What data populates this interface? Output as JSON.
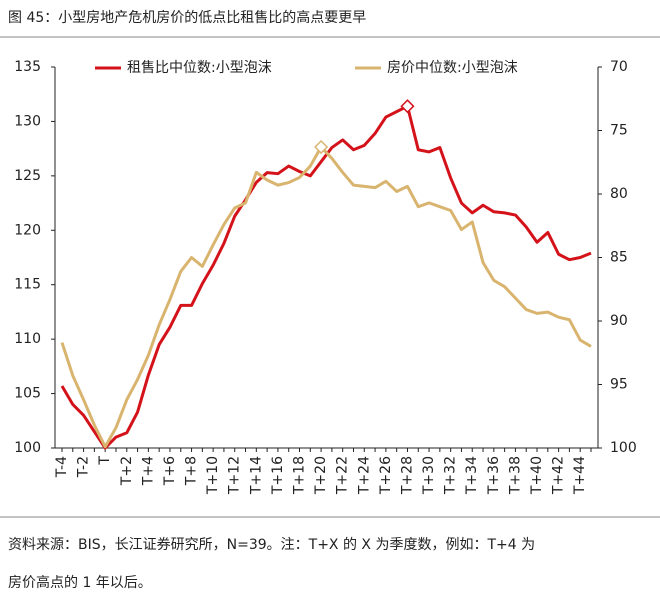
{
  "chart_data": {
    "type": "line",
    "title": "图 45：小型房地产危机房价的低点比租售比的高点要更早",
    "categories": [
      "T-4",
      null,
      "T-2",
      null,
      "T",
      null,
      "T+2",
      null,
      "T+4",
      null,
      "T+6",
      null,
      "T+8",
      null,
      "T+10",
      null,
      "T+12",
      null,
      "T+14",
      null,
      "T+16",
      null,
      "T+18",
      null,
      "T+20",
      null,
      "T+22",
      null,
      "T+24",
      null,
      "T+26",
      null,
      "T+28",
      null,
      "T+30",
      null,
      "T+32",
      null,
      "T+34",
      null,
      "T+36",
      null,
      "T+38",
      null,
      "T+40",
      null,
      "T+42",
      null,
      "T+44",
      null
    ],
    "series": [
      {
        "name": "租售比中位数:小型泡沫",
        "color": "#d4121a",
        "axis": "y",
        "marker_at": 32,
        "values": [
          105.7,
          104,
          103,
          101.5,
          100,
          101,
          101.4,
          103.3,
          106.7,
          109.5,
          111.1,
          113.1,
          113.1,
          115.1,
          116.8,
          118.8,
          121.3,
          122.8,
          124.4,
          125.3,
          125.2,
          125.9,
          125.4,
          125,
          126.3,
          127.6,
          128.3,
          127.4,
          127.8,
          128.9,
          130.4,
          130.9,
          131.4,
          127.4,
          127.2,
          127.6,
          124.8,
          122.5,
          121.6,
          122.3,
          121.7,
          121.6,
          121.4,
          120.3,
          118.9,
          119.8,
          117.8,
          117.3,
          117.5,
          117.9
        ]
      },
      {
        "name": "房价中位数:小型泡沫",
        "color": "#d9b46e",
        "axis": "y2",
        "marker_at": 24,
        "values": [
          91.7,
          94.3,
          96.2,
          98.2,
          99.9,
          98.4,
          96.2,
          94.6,
          92.7,
          90.3,
          88.3,
          86.1,
          85,
          85.7,
          84,
          82.4,
          81.1,
          80.7,
          78.3,
          78.9,
          79.3,
          79.1,
          78.7,
          77.8,
          76.3,
          77.2,
          78.3,
          79.3,
          79.4,
          79.5,
          79,
          79.8,
          79.4,
          81,
          80.7,
          81,
          81.3,
          82.8,
          82.2,
          85.4,
          86.8,
          87.3,
          88.2,
          89.1,
          89.4,
          89.3,
          89.7,
          89.9,
          91.5,
          92
        ]
      }
    ],
    "ylim": [
      100,
      135
    ],
    "yticks": [
      100,
      105,
      110,
      115,
      120,
      125,
      130,
      135
    ],
    "y2lim": [
      100,
      70
    ],
    "y2ticks": [
      70,
      75,
      80,
      85,
      90,
      95,
      100
    ],
    "legend": "top",
    "source": [
      "资料来源：BIS，长江证券研究所，N=39。注：T+X 的 X 为季度数，例如：T+4 为",
      "房价高点的 1 年以后。"
    ]
  }
}
